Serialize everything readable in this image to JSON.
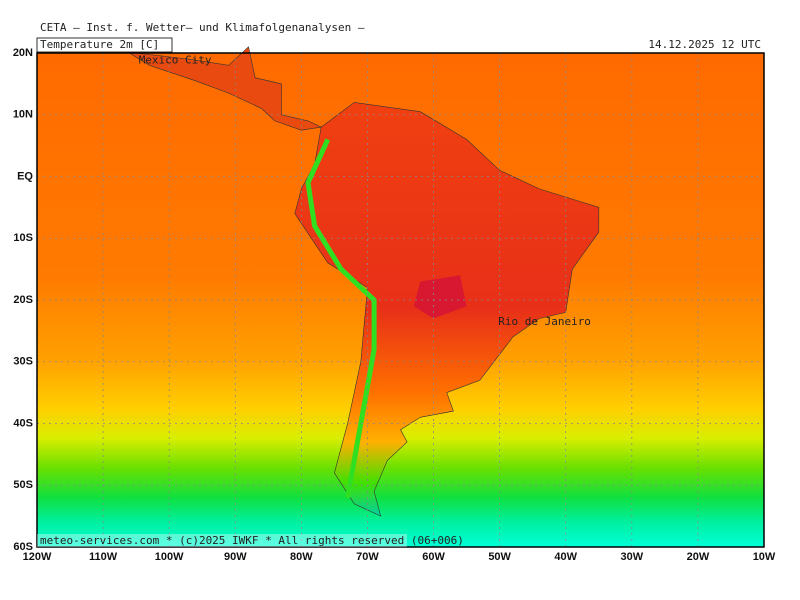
{
  "header": {
    "org": "CETA — Inst. f. Wetter— und Klimafolgenanalysen —"
  },
  "panel": {
    "title": "Temperature 2m [C]",
    "datetime": "14.12.2025 12 UTC"
  },
  "map": {
    "lat_labels": [
      "20N",
      "10N",
      "EQ",
      "10S",
      "20S",
      "30S",
      "40S",
      "50S",
      "60S"
    ],
    "lon_labels": [
      "120W",
      "110W",
      "100W",
      "90W",
      "80W",
      "70W",
      "60W",
      "50W",
      "40W",
      "30W",
      "20W",
      "10W"
    ],
    "cities": [
      {
        "label": "Mexico City"
      },
      {
        "label": "Rio de Janeiro"
      }
    ]
  },
  "footer": {
    "credit": "meteo-services.com * (c)2025 IWKF * All rights reserved (06+006)"
  }
}
